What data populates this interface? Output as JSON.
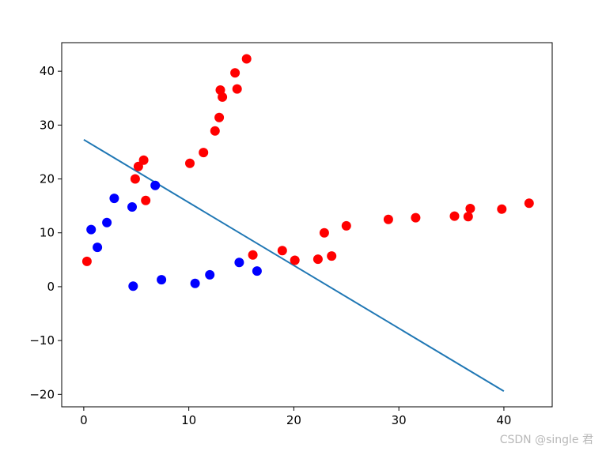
{
  "chart_data": {
    "type": "scatter",
    "title": "",
    "xlabel": "",
    "ylabel": "",
    "xlim": [
      -2.1,
      44.6
    ],
    "ylim": [
      -22.3,
      45.3
    ],
    "x_ticks": [
      0,
      10,
      20,
      30,
      40
    ],
    "y_ticks": [
      -20,
      -10,
      0,
      10,
      20,
      30,
      40
    ],
    "x_tick_labels": [
      "0",
      "10",
      "20",
      "30",
      "40"
    ],
    "y_tick_labels": [
      "−20",
      "−10",
      "0",
      "10",
      "20",
      "30",
      "40"
    ],
    "grid": false,
    "series": [
      {
        "kind": "scatter",
        "color": "#ff0000",
        "points": [
          [
            0.3,
            4.7
          ],
          [
            4.9,
            20.0
          ],
          [
            5.2,
            22.3
          ],
          [
            5.7,
            23.5
          ],
          [
            5.9,
            16.0
          ],
          [
            10.1,
            22.9
          ],
          [
            11.4,
            24.9
          ],
          [
            12.5,
            28.9
          ],
          [
            12.9,
            31.4
          ],
          [
            13.0,
            36.5
          ],
          [
            13.2,
            35.2
          ],
          [
            14.4,
            39.7
          ],
          [
            14.6,
            36.7
          ],
          [
            15.5,
            42.3
          ],
          [
            16.1,
            5.9
          ],
          [
            18.9,
            6.7
          ],
          [
            20.1,
            4.9
          ],
          [
            22.3,
            5.1
          ],
          [
            22.9,
            10.0
          ],
          [
            23.6,
            5.7
          ],
          [
            25.0,
            11.3
          ],
          [
            29.0,
            12.5
          ],
          [
            31.6,
            12.8
          ],
          [
            35.3,
            13.1
          ],
          [
            36.6,
            13.0
          ],
          [
            36.8,
            14.5
          ],
          [
            39.8,
            14.4
          ],
          [
            42.4,
            15.5
          ]
        ]
      },
      {
        "kind": "scatter",
        "color": "#0000ff",
        "points": [
          [
            0.7,
            10.6
          ],
          [
            1.3,
            7.3
          ],
          [
            2.2,
            11.9
          ],
          [
            2.9,
            16.4
          ],
          [
            4.6,
            14.8
          ],
          [
            4.7,
            0.1
          ],
          [
            6.8,
            18.8
          ],
          [
            7.4,
            1.3
          ],
          [
            10.6,
            0.6
          ],
          [
            12.0,
            2.2
          ],
          [
            14.8,
            4.5
          ],
          [
            16.5,
            2.9
          ]
        ]
      },
      {
        "kind": "line",
        "color": "#1f77b4",
        "points": [
          [
            0.0,
            27.3
          ],
          [
            40.0,
            -19.4
          ]
        ]
      }
    ]
  },
  "watermark": "CSDN @single 君"
}
